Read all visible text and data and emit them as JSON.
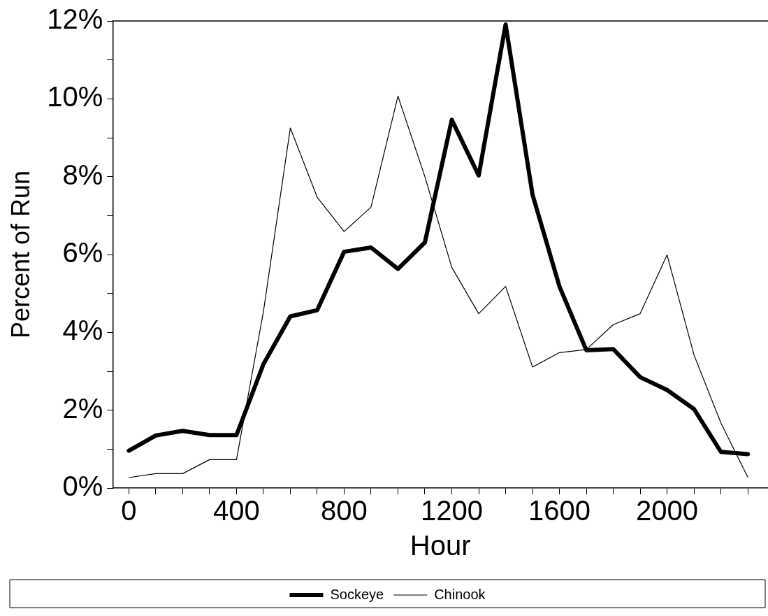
{
  "chart_data": {
    "type": "line",
    "xlabel": "Hour",
    "ylabel": "Percent of Run",
    "x": [
      0,
      100,
      200,
      300,
      400,
      500,
      600,
      700,
      800,
      900,
      1000,
      1100,
      1200,
      1300,
      1400,
      1500,
      1600,
      1700,
      1800,
      1900,
      2000,
      2100,
      2200,
      2300
    ],
    "series": [
      {
        "name": "Sockeye",
        "color": "#000000",
        "values": [
          0.96,
          1.35,
          1.47,
          1.36,
          1.36,
          3.18,
          4.41,
          4.57,
          6.07,
          6.18,
          5.63,
          6.31,
          9.46,
          8.03,
          11.91,
          7.54,
          5.18,
          3.54,
          3.57,
          2.85,
          2.52,
          2.03,
          0.93,
          0.87
        ]
      },
      {
        "name": "Chinook",
        "color": "#000000",
        "values": [
          0.27,
          0.37,
          0.37,
          0.73,
          0.73,
          4.53,
          9.25,
          7.47,
          6.59,
          7.22,
          10.07,
          8.0,
          5.67,
          4.48,
          5.18,
          3.11,
          3.48,
          3.56,
          4.2,
          4.48,
          5.99,
          3.42,
          1.67,
          0.28
        ]
      }
    ],
    "xlim": [
      -60,
      2375
    ],
    "xticks": [
      0,
      {
        "value": 100,
        "label": null
      },
      {
        "value": 200,
        "label": null
      },
      {
        "value": 300,
        "label": null
      },
      400,
      {
        "value": 500,
        "label": null
      },
      {
        "value": 600,
        "label": null
      },
      {
        "value": 700,
        "label": null
      },
      800,
      {
        "value": 900,
        "label": null
      },
      {
        "value": 1000,
        "label": null
      },
      {
        "value": 1100,
        "label": null
      },
      1200,
      {
        "value": 1300,
        "label": null
      },
      {
        "value": 1400,
        "label": null
      },
      {
        "value": 1500,
        "label": null
      },
      1600,
      {
        "value": 1700,
        "label": null
      },
      {
        "value": 1800,
        "label": null
      },
      {
        "value": 1900,
        "label": null
      },
      2000,
      {
        "value": 2100,
        "label": null
      },
      {
        "value": 2200,
        "label": null
      },
      {
        "value": 2300,
        "label": null
      }
    ],
    "ylim": [
      0,
      12
    ],
    "yticks": [
      {
        "value": 0,
        "label": "0%"
      },
      {
        "value": 1,
        "label": null
      },
      {
        "value": 2,
        "label": "2%"
      },
      {
        "value": 3,
        "label": null
      },
      {
        "value": 4,
        "label": "4%"
      },
      {
        "value": 5,
        "label": null
      },
      {
        "value": 6,
        "label": "6%"
      },
      {
        "value": 7,
        "label": null
      },
      {
        "value": 8,
        "label": "8%"
      },
      {
        "value": 9,
        "label": null
      },
      {
        "value": 10,
        "label": "10%"
      },
      {
        "value": 11,
        "label": null
      },
      {
        "value": 12,
        "label": "12%"
      }
    ],
    "grid": false,
    "legend": "bottom",
    "marker": "none",
    "line_style": "solid"
  }
}
